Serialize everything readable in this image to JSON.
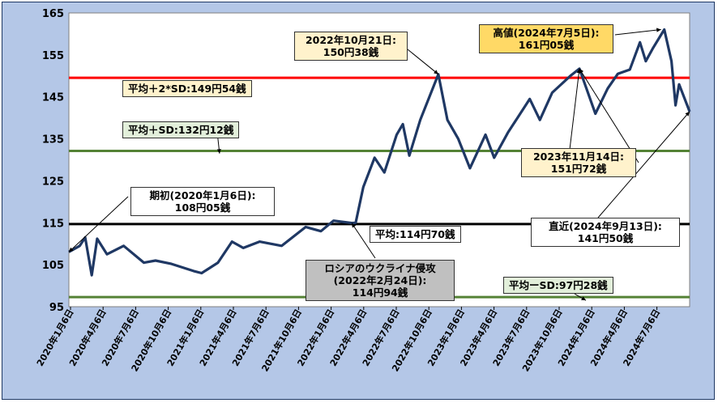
{
  "chart_data": {
    "type": "line",
    "series": [
      {
        "values": [
          {
            "x": "2020-01-06",
            "y": 108.05
          },
          {
            "x": "2020-02-05",
            "y": 109.5
          },
          {
            "x": "2020-02-20",
            "y": 111.5
          },
          {
            "x": "2020-03-09",
            "y": 102.5
          },
          {
            "x": "2020-03-24",
            "y": 111.2
          },
          {
            "x": "2020-04-20",
            "y": 107.5
          },
          {
            "x": "2020-06-05",
            "y": 109.5
          },
          {
            "x": "2020-07-31",
            "y": 105.5
          },
          {
            "x": "2020-09-01",
            "y": 106.0
          },
          {
            "x": "2020-10-15",
            "y": 105.2
          },
          {
            "x": "2020-12-15",
            "y": 103.5
          },
          {
            "x": "2021-01-06",
            "y": 103.0
          },
          {
            "x": "2021-02-20",
            "y": 105.5
          },
          {
            "x": "2021-03-31",
            "y": 110.5
          },
          {
            "x": "2021-05-01",
            "y": 109.0
          },
          {
            "x": "2021-06-15",
            "y": 110.5
          },
          {
            "x": "2021-08-15",
            "y": 109.5
          },
          {
            "x": "2021-10-20",
            "y": 114.0
          },
          {
            "x": "2021-12-01",
            "y": 113.0
          },
          {
            "x": "2022-01-05",
            "y": 115.5
          },
          {
            "x": "2022-02-24",
            "y": 114.94
          },
          {
            "x": "2022-03-07",
            "y": 115.0
          },
          {
            "x": "2022-03-28",
            "y": 123.5
          },
          {
            "x": "2022-04-28",
            "y": 130.5
          },
          {
            "x": "2022-05-25",
            "y": 127.0
          },
          {
            "x": "2022-06-28",
            "y": 136.0
          },
          {
            "x": "2022-07-15",
            "y": 138.5
          },
          {
            "x": "2022-08-02",
            "y": 131.0
          },
          {
            "x": "2022-09-01",
            "y": 139.5
          },
          {
            "x": "2022-10-21",
            "y": 150.38
          },
          {
            "x": "2022-11-15",
            "y": 139.5
          },
          {
            "x": "2022-12-15",
            "y": 135.0
          },
          {
            "x": "2023-01-16",
            "y": 128.0
          },
          {
            "x": "2023-02-28",
            "y": 136.0
          },
          {
            "x": "2023-03-24",
            "y": 130.5
          },
          {
            "x": "2023-05-01",
            "y": 136.5
          },
          {
            "x": "2023-06-30",
            "y": 144.5
          },
          {
            "x": "2023-07-28",
            "y": 139.5
          },
          {
            "x": "2023-08-31",
            "y": 146.0
          },
          {
            "x": "2023-10-20",
            "y": 150.0
          },
          {
            "x": "2023-11-14",
            "y": 151.72
          },
          {
            "x": "2023-12-28",
            "y": 141.0
          },
          {
            "x": "2024-01-31",
            "y": 147.0
          },
          {
            "x": "2024-02-28",
            "y": 150.5
          },
          {
            "x": "2024-04-01",
            "y": 151.5
          },
          {
            "x": "2024-04-29",
            "y": 158.0
          },
          {
            "x": "2024-05-15",
            "y": 153.5
          },
          {
            "x": "2024-06-03",
            "y": 156.5
          },
          {
            "x": "2024-07-05",
            "y": 161.05
          },
          {
            "x": "2024-07-25",
            "y": 153.5
          },
          {
            "x": "2024-08-05",
            "y": 143.0
          },
          {
            "x": "2024-08-15",
            "y": 148.0
          },
          {
            "x": "2024-09-13",
            "y": 141.5
          }
        ]
      }
    ],
    "ylim": [
      95,
      165
    ],
    "yticks": [
      "95",
      "105",
      "115",
      "125",
      "135",
      "145",
      "155",
      "165"
    ],
    "xlim": [
      "2020-01-06",
      "2024-09-13"
    ],
    "xticks": [
      "2020年1月6日",
      "2020年4月6日",
      "2020年7月6日",
      "2020年10月6日",
      "2021年1月6日",
      "2021年4月6日",
      "2021年7月6日",
      "2021年10月6日",
      "2022年1月6日",
      "2022年4月6日",
      "2022年7月6日",
      "2022年10月6日",
      "2023年1月6日",
      "2023年4月6日",
      "2023年7月6日",
      "2023年10月6日",
      "2024年1月6日",
      "2024年4月6日",
      "2024年7月6日"
    ],
    "reference_lines": [
      {
        "label": "平均＋2*SD:149円54銭",
        "value": 149.54,
        "color": "#ff0000"
      },
      {
        "label": "平均＋SD:132円12銭",
        "value": 132.12,
        "color": "#548235"
      },
      {
        "label": "平均:114円70銭",
        "value": 114.7,
        "color": "#000000"
      },
      {
        "label": "平均ーSD:97円28銭",
        "value": 97.28,
        "color": "#548235"
      }
    ],
    "line_color": "#1f3864",
    "plot_bg": "#ffffff",
    "grid": false
  },
  "annotations": {
    "start": {
      "l1": "期初(2020年1月6日):",
      "l2": "108円05銭"
    },
    "peak2022": {
      "l1": "2022年10月21日:",
      "l2": "150円38銭"
    },
    "high": {
      "l1": "高値(2024年7月5日):",
      "l2": "161円05銭"
    },
    "nov2023": {
      "l1": "2023年11月14日:",
      "l2": "151円72銭"
    },
    "latest": {
      "l1": "直近(2024年9月13日):",
      "l2": "141円50銭"
    },
    "ukraine": {
      "l1": "ロシアのウクライナ侵攻",
      "l2": "(2022年2月24日):",
      "l3": "114円94銭"
    }
  }
}
